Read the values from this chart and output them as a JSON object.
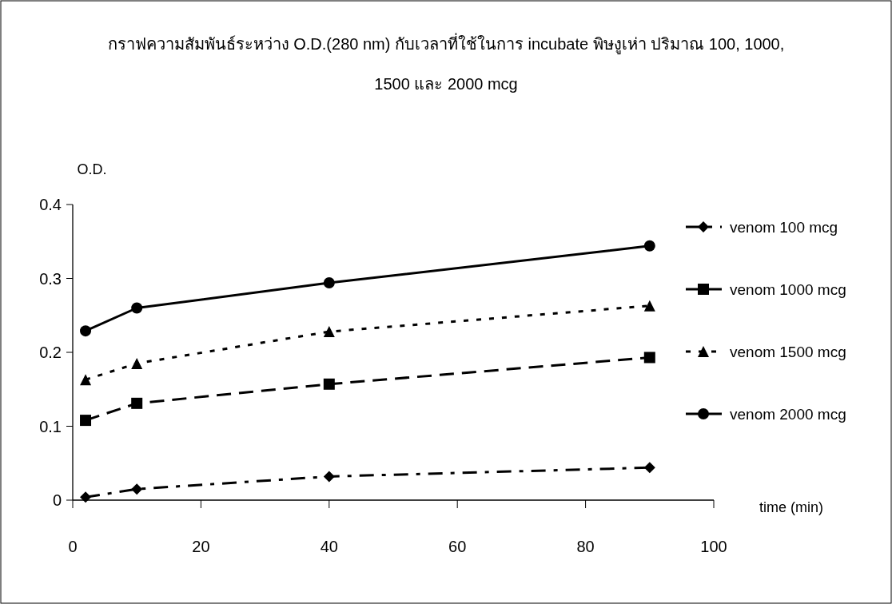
{
  "chart_data": {
    "type": "line",
    "title": "กราฟความสัมพันธ์ระหว่าง O.D.(280 nm) กับเวลาที่ใช้ในการ incubate พิษงูเห่า ปริมาณ 100, 1000, 1500 และ 2000 mcg",
    "xlabel": "time (min)",
    "ylabel": "O.D.",
    "x": [
      2,
      10,
      40,
      90
    ],
    "series": [
      {
        "name": "venom 100 mcg",
        "color": "#000000",
        "marker": "diamond",
        "line_style": "dashdot",
        "values": [
          0.004,
          0.015,
          0.032,
          0.044
        ]
      },
      {
        "name": "venom 1000 mcg",
        "color": "#000000",
        "marker": "square",
        "line_style": "dashed",
        "values": [
          0.108,
          0.131,
          0.157,
          0.193
        ]
      },
      {
        "name": "venom 1500 mcg",
        "color": "#000000",
        "marker": "triangle",
        "line_style": "dotted",
        "values": [
          0.163,
          0.185,
          0.228,
          0.263
        ]
      },
      {
        "name": "venom 2000 mcg",
        "color": "#000000",
        "marker": "circle",
        "line_style": "solid",
        "values": [
          0.229,
          0.26,
          0.294,
          0.344
        ]
      }
    ],
    "xlim": [
      0,
      100
    ],
    "xticks": [
      0,
      20,
      40,
      60,
      80,
      100
    ],
    "ylim": [
      0,
      0.4
    ],
    "yticks": [
      0,
      0.1,
      0.2,
      0.3,
      0.4
    ],
    "grid": false,
    "legend": "right"
  }
}
